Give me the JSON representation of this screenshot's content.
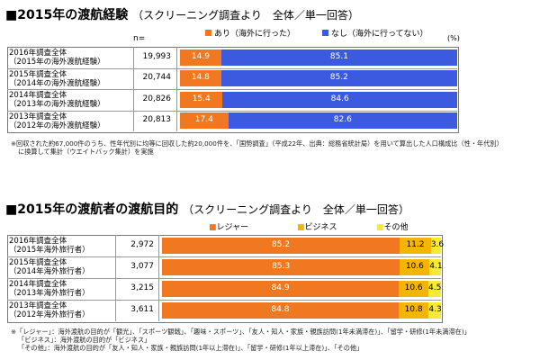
{
  "chart_data": [
    {
      "type": "bar",
      "orientation": "horizontal-stacked",
      "title": "■2015年の渡航経験",
      "subtitle": "（スクリーニング調査より　全体／単一回答）",
      "n_header": "n=",
      "unit": "(%)",
      "categories": [
        "2016年調査全体\n（2015年の海外渡航経験）",
        "2015年調査全体\n（2014年の海外渡航経験）",
        "2014年調査全体\n（2013年の海外渡航経験）",
        "2013年調査全体\n（2012年の海外渡航経験）"
      ],
      "category_lines": [
        [
          "2016年調査全体",
          "（2015年の海外渡航経験）"
        ],
        [
          "2015年調査全体",
          "（2014年の海外渡航経験）"
        ],
        [
          "2014年調査全体",
          "（2013年の海外渡航経験）"
        ],
        [
          "2013年調査全体",
          "（2012年の海外渡航経験）"
        ]
      ],
      "n": [
        "19,993",
        "20,744",
        "20,826",
        "20,813"
      ],
      "series": [
        {
          "name": "あり（海外に行った）",
          "color": "#f07820",
          "label_color": "#ffffff",
          "values": [
            14.9,
            14.8,
            15.4,
            17.4
          ]
        },
        {
          "name": "なし（海外に行ってない）",
          "color": "#3c5ae0",
          "label_color": "#ffffff",
          "values": [
            85.1,
            85.2,
            84.6,
            82.6
          ]
        }
      ],
      "xlim": [
        0,
        100
      ],
      "legend": "top",
      "note": [
        "※回収された約67,000件のうち、性年代別に均等に回収した約20,000件を、「国勢調査」（平成22年、出典：総務省統計局）を用いて算出した人口構成比（性・年代別）",
        "に換算して集計（ウエイトバック集計）を実施"
      ]
    },
    {
      "type": "bar",
      "orientation": "horizontal-stacked",
      "title": "■2015年の渡航者の渡航目的",
      "subtitle": "（スクリーニング調査より　全体／単一回答）",
      "unit": "",
      "categories": [
        "2016年調査全体\n（2015年海外旅行者）",
        "2015年調査全体\n（2014年海外旅行者）",
        "2014年調査全体\n（2013年海外旅行者）",
        "2013年調査全体\n（2012年海外旅行者）"
      ],
      "category_lines": [
        [
          "2016年調査全体",
          "（2015年海外旅行者）"
        ],
        [
          "2015年調査全体",
          "（2014年海外旅行者）"
        ],
        [
          "2014年調査全体",
          "（2013年海外旅行者）"
        ],
        [
          "2013年調査全体",
          "（2012年海外旅行者）"
        ]
      ],
      "n": [
        "2,972",
        "3,077",
        "3,215",
        "3,611"
      ],
      "series": [
        {
          "name": "■レジャー",
          "color": "#f07820",
          "label_color": "#ffffff",
          "values": [
            85.2,
            85.3,
            84.9,
            84.8
          ]
        },
        {
          "name": "■ビジネス",
          "color": "#f5b400",
          "label_color": "#000000",
          "values": [
            11.2,
            10.6,
            10.6,
            10.8
          ]
        },
        {
          "name": "■その他",
          "color": "#f8ea30",
          "label_color": "#000000",
          "values": [
            3.6,
            4.1,
            4.5,
            4.3
          ]
        }
      ],
      "xlim": [
        0,
        100
      ],
      "legend": "top",
      "note": [
        "※「レジャー」：海外渡航の目的が「観光」、「スポーツ観戦」、「趣味・スポーツ」、「友人・知人・家族・親族訪問(1年未満滞在)」、「留学・研修(1年未満滞在)」",
        "「ビジネス」：海外渡航の目的が「ビジネス」",
        "「その他」：海外渡航の目的が「友人・知人・家族・親族訪問(1年以上滞在)」、「留学・研修(1年以上滞在)」、「その他」"
      ]
    }
  ]
}
